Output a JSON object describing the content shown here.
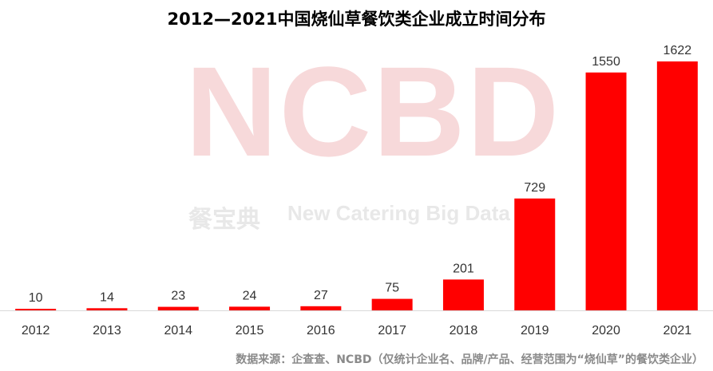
{
  "chart_data": {
    "type": "bar",
    "title": "2012—2021中国烧仙草餐饮类企业成立时间分布",
    "categories": [
      "2012",
      "2013",
      "2014",
      "2015",
      "2016",
      "2017",
      "2018",
      "2019",
      "2020",
      "2021"
    ],
    "values": [
      10,
      14,
      23,
      24,
      27,
      75,
      201,
      729,
      1550,
      1622
    ],
    "bar_color": "#ff0000",
    "grid": false,
    "legend": "none"
  },
  "watermark": {
    "logo": "NCBD",
    "cn": "餐宝典",
    "en": "New Catering Big Data"
  },
  "footnote": "数据来源：企查查、NCBD（仅统计企业名、品牌/产品、经营范围为“烧仙草”的餐饮类企业）"
}
